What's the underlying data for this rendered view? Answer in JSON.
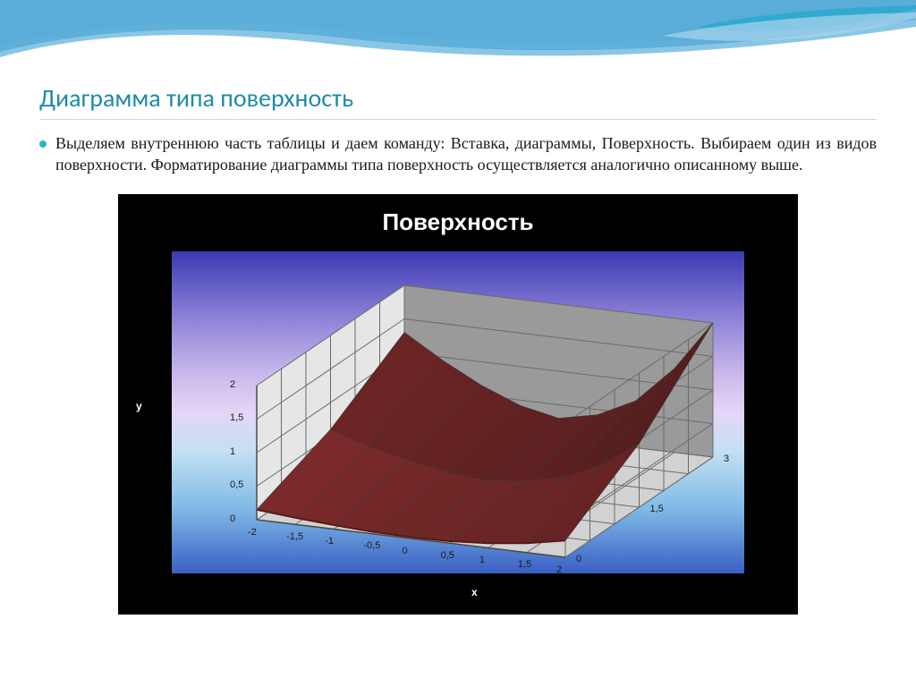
{
  "slide": {
    "title": "Диаграмма типа поверхность",
    "bullet_text": "Выделяем внутреннюю часть таблицы и даем команду: Вставка, диаграммы, Поверхность. Выбираем один из видов поверхности. Форматирование диаграммы типа поверхность осуществляется аналогично описанному выше.",
    "title_color": "#1f8ba8",
    "title_fontsize": 28,
    "body_fontsize": 18,
    "body_color": "#1a1a1a",
    "bullet_color": "#2bb3c9"
  },
  "wave": {
    "colors": [
      "#0a5c9c",
      "#1a7fc4",
      "#6bb8de",
      "#a8d4ec"
    ],
    "swirl_color": "#2ca8cc"
  },
  "chart": {
    "type": "3d-surface",
    "title": "Поверхность",
    "title_color": "#ffffff",
    "title_fontsize": 26,
    "outer_bg": "#000000",
    "plot_gradient": [
      "#3b3ab3",
      "#8b7fd6",
      "#c9b8ec",
      "#e4d6f6",
      "#c4e0f2",
      "#7fbae6",
      "#3a5fc4"
    ],
    "x_label": "x",
    "y_label": "y",
    "axis_label_color": "#ffffff",
    "tick_color": "#1a1a1a",
    "tick_fontsize": 11,
    "x_ticks": [
      "-2",
      "-1,5",
      "-1",
      "-0,5",
      "0",
      "0,5",
      "1",
      "1,5",
      "2"
    ],
    "depth_ticks": [
      "0",
      "1,5",
      "3"
    ],
    "z_ticks": [
      "0",
      "0,5",
      "1",
      "1,5",
      "2"
    ],
    "surface_color_top": "#7a2a2a",
    "surface_color_front": "#a34848",
    "surface_color_dark": "#5a1818",
    "wall_color_back": "#9a9a9a",
    "wall_color_side": "#7a7a7a",
    "floor_color": "#d2d2d2",
    "grid_color": "#6a6a6a",
    "wireframe_color": "#3a3a3a",
    "xlim": [
      -2,
      2
    ],
    "depth_lim": [
      0,
      3
    ],
    "zlim": [
      0,
      2
    ],
    "x_values": [
      -2,
      -1.5,
      -1,
      -0.5,
      0,
      0.5,
      1,
      1.5,
      2
    ],
    "depth_values": [
      0,
      1.5,
      3
    ],
    "z_data": [
      [
        0.15,
        0.1,
        0.06,
        0.03,
        0.02,
        0.03,
        0.07,
        0.14,
        0.25
      ],
      [
        0.6,
        0.42,
        0.28,
        0.18,
        0.12,
        0.18,
        0.3,
        0.55,
        0.95
      ],
      [
        1.3,
        0.95,
        0.65,
        0.42,
        0.3,
        0.42,
        0.7,
        1.25,
        2.0
      ]
    ]
  }
}
